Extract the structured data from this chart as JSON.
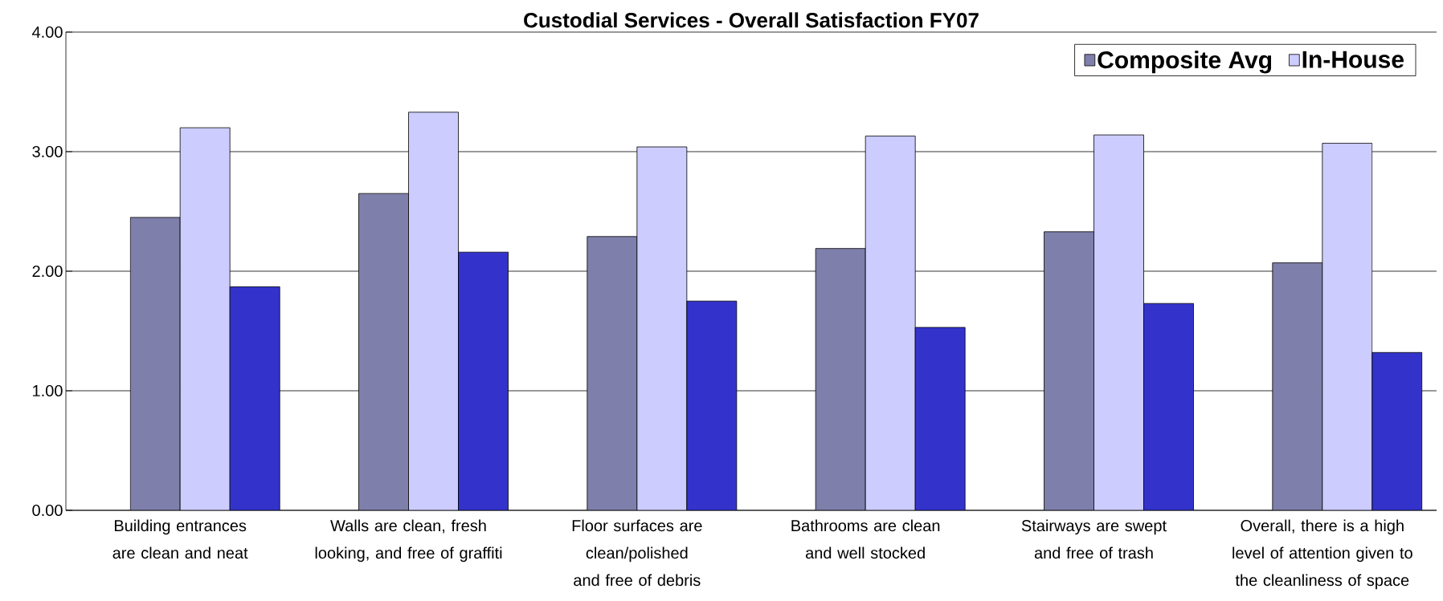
{
  "chart_data": {
    "type": "bar",
    "title": "Custodial Services - Overall Satisfaction FY07",
    "categories": [
      "Building entrances are clean and neat",
      "Walls are clean, fresh looking, and free of graffiti",
      "Floor surfaces are clean/polished and free of debris",
      "Bathrooms are clean and well stocked",
      "Stairways are swept and free of trash",
      "Overall, there is a high level of attention given to the cleanliness of space"
    ],
    "series": [
      {
        "name": "Composite Avg",
        "color": "#7f7fab",
        "values": [
          2.45,
          2.65,
          2.29,
          2.19,
          2.33,
          2.07
        ]
      },
      {
        "name": "In-House",
        "color": "#ccccff",
        "values": [
          3.2,
          3.33,
          3.04,
          3.13,
          3.14,
          3.07
        ]
      },
      {
        "color": "#3333cc",
        "values": [
          1.87,
          2.16,
          1.75,
          1.53,
          1.73,
          1.32
        ]
      }
    ],
    "ylim": [
      0,
      4
    ],
    "yticks": [
      {
        "value": 0,
        "label": "0.00"
      },
      {
        "value": 1,
        "label": "1.00"
      },
      {
        "value": 2,
        "label": "2.00"
      },
      {
        "value": 3,
        "label": "3.00"
      },
      {
        "value": 4,
        "label": "4.00"
      }
    ],
    "grid": "y",
    "legend": "top right"
  }
}
